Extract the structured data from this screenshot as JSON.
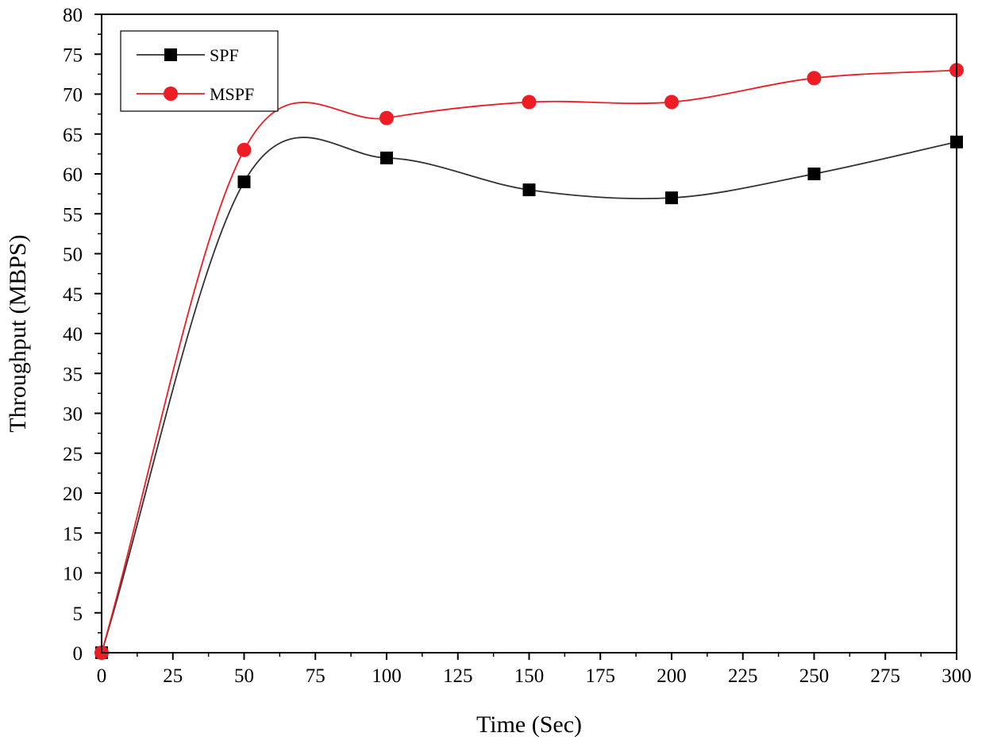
{
  "chart_data": {
    "type": "line",
    "title": "",
    "xlabel": "Time (Sec)",
    "ylabel": "Throughput (MBPS)",
    "xlim": [
      0,
      300
    ],
    "ylim": [
      0,
      80
    ],
    "xticks": [
      0,
      25,
      50,
      75,
      100,
      125,
      150,
      175,
      200,
      225,
      250,
      275,
      300
    ],
    "yticks": [
      0,
      5,
      10,
      15,
      20,
      25,
      30,
      35,
      40,
      45,
      50,
      55,
      60,
      65,
      70,
      75,
      80
    ],
    "grid": false,
    "legend_position": "top-left",
    "x": [
      0,
      50,
      100,
      150,
      200,
      250,
      300
    ],
    "series": [
      {
        "name": "SPF",
        "marker": "square",
        "color": "#000000",
        "line_color": "#333333",
        "values": [
          0,
          59,
          62,
          58,
          57,
          60,
          64
        ]
      },
      {
        "name": "MSPF",
        "marker": "circle",
        "color": "#ee1c25",
        "line_color": "#ee1c25",
        "values": [
          0,
          63,
          67,
          69,
          69,
          72,
          73
        ]
      }
    ]
  }
}
